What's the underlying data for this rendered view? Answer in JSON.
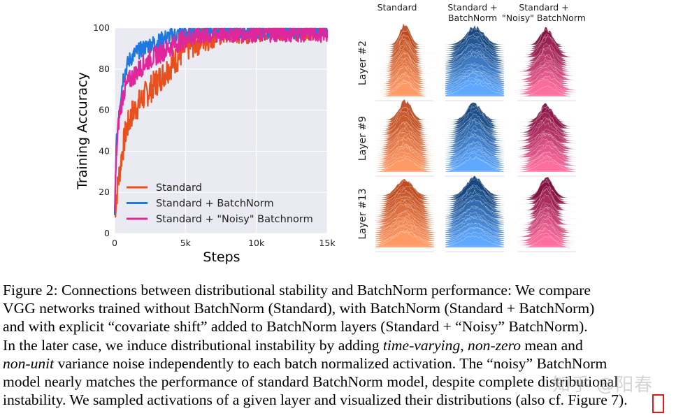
{
  "chart_data": {
    "type": "line",
    "xlabel": "Steps",
    "ylabel": "Training Accuracy",
    "xlim": [
      0,
      15000
    ],
    "ylim": [
      0,
      100
    ],
    "xticks": [
      "0",
      "5k",
      "10k",
      "15k"
    ],
    "xtick_values": [
      0,
      5000,
      10000,
      15000
    ],
    "yticks": [
      "0",
      "20",
      "40",
      "60",
      "80",
      "100"
    ],
    "ytick_values": [
      0,
      20,
      40,
      60,
      80,
      100
    ],
    "grid": true,
    "legend_position": "lower-left",
    "series": [
      {
        "name": "Standard",
        "color": "#e8501e",
        "x": [
          0,
          200,
          500,
          800,
          1200,
          1600,
          2000,
          2500,
          3000,
          3500,
          4000,
          4500,
          5000,
          5500,
          6000,
          7000,
          8000,
          9000,
          10000,
          11000,
          12000,
          13000,
          14000,
          15000
        ],
        "y": [
          10,
          22,
          38,
          50,
          58,
          62,
          66,
          70,
          74,
          78,
          82,
          86,
          90,
          92,
          94,
          96,
          97,
          97,
          97.5,
          98,
          98,
          98,
          98,
          98
        ]
      },
      {
        "name": "Standard + BatchNorm",
        "color": "#1f77e0",
        "x": [
          0,
          100,
          300,
          600,
          1000,
          1500,
          2000,
          2500,
          3000,
          3500,
          4000,
          4500,
          5000,
          6000,
          7000,
          8000,
          9000,
          10000,
          11000,
          12000,
          13000,
          14000,
          15000
        ],
        "y": [
          7,
          40,
          60,
          76,
          84,
          88,
          90,
          92,
          93,
          95,
          96,
          97,
          98,
          98.5,
          98.5,
          98.5,
          98.5,
          98.5,
          98.5,
          98.5,
          98.5,
          98.5,
          98.5
        ]
      },
      {
        "name": "Standard + \"Noisy\" Batchnorm",
        "color": "#e0269b",
        "x": [
          0,
          100,
          300,
          600,
          1000,
          1500,
          2000,
          2500,
          3000,
          3500,
          4000,
          4500,
          5000,
          6000,
          7000,
          8000,
          9000,
          10000,
          11000,
          12000,
          13000,
          14000,
          15000
        ],
        "y": [
          8,
          36,
          56,
          68,
          74,
          78,
          82,
          85,
          87,
          89,
          91,
          93,
          95,
          96.5,
          97,
          97.5,
          97.5,
          97.5,
          97.5,
          97.5,
          97.5,
          97.5,
          97.5
        ]
      }
    ]
  },
  "ridge_figure": {
    "columns": [
      {
        "label": "Standard",
        "color_dark": "#b84418",
        "color_light": "#ff9a66"
      },
      {
        "label": "Standard +\nBatchNorm",
        "color_dark": "#123f73",
        "color_light": "#5fa8ff"
      },
      {
        "label": "Standard +\n\"Noisy\" BatchNorm",
        "color_dark": "#7a0a3a",
        "color_light": "#ff6f9f"
      }
    ],
    "rows": [
      "Layer #2",
      "Layer #9",
      "Layer #13"
    ]
  },
  "caption": {
    "lines": [
      "Figure 2: Connections between distributional stability and BatchNorm performance: We compare",
      "VGG networks trained without BatchNorm (Standard), with BatchNorm (Standard + BatchNorm)",
      "and with explicit “covariate shift” added to BatchNorm layers (Standard + “Noisy” BatchNorm).",
      "In the later case, we induce distributional instability by adding ",
      "time-varying",
      ", ",
      "non-zero",
      " mean and",
      "non-unit",
      " variance noise independently to each batch normalized activation. The “noisy” BatchNorm",
      "model nearly matches the performance of standard BatchNorm model, despite complete distributional",
      "instability. We sampled activations of a given layer and visualized their distributions (also cf. Figure ",
      "7",
      ")."
    ]
  },
  "watermark": "知乎 @阳春"
}
